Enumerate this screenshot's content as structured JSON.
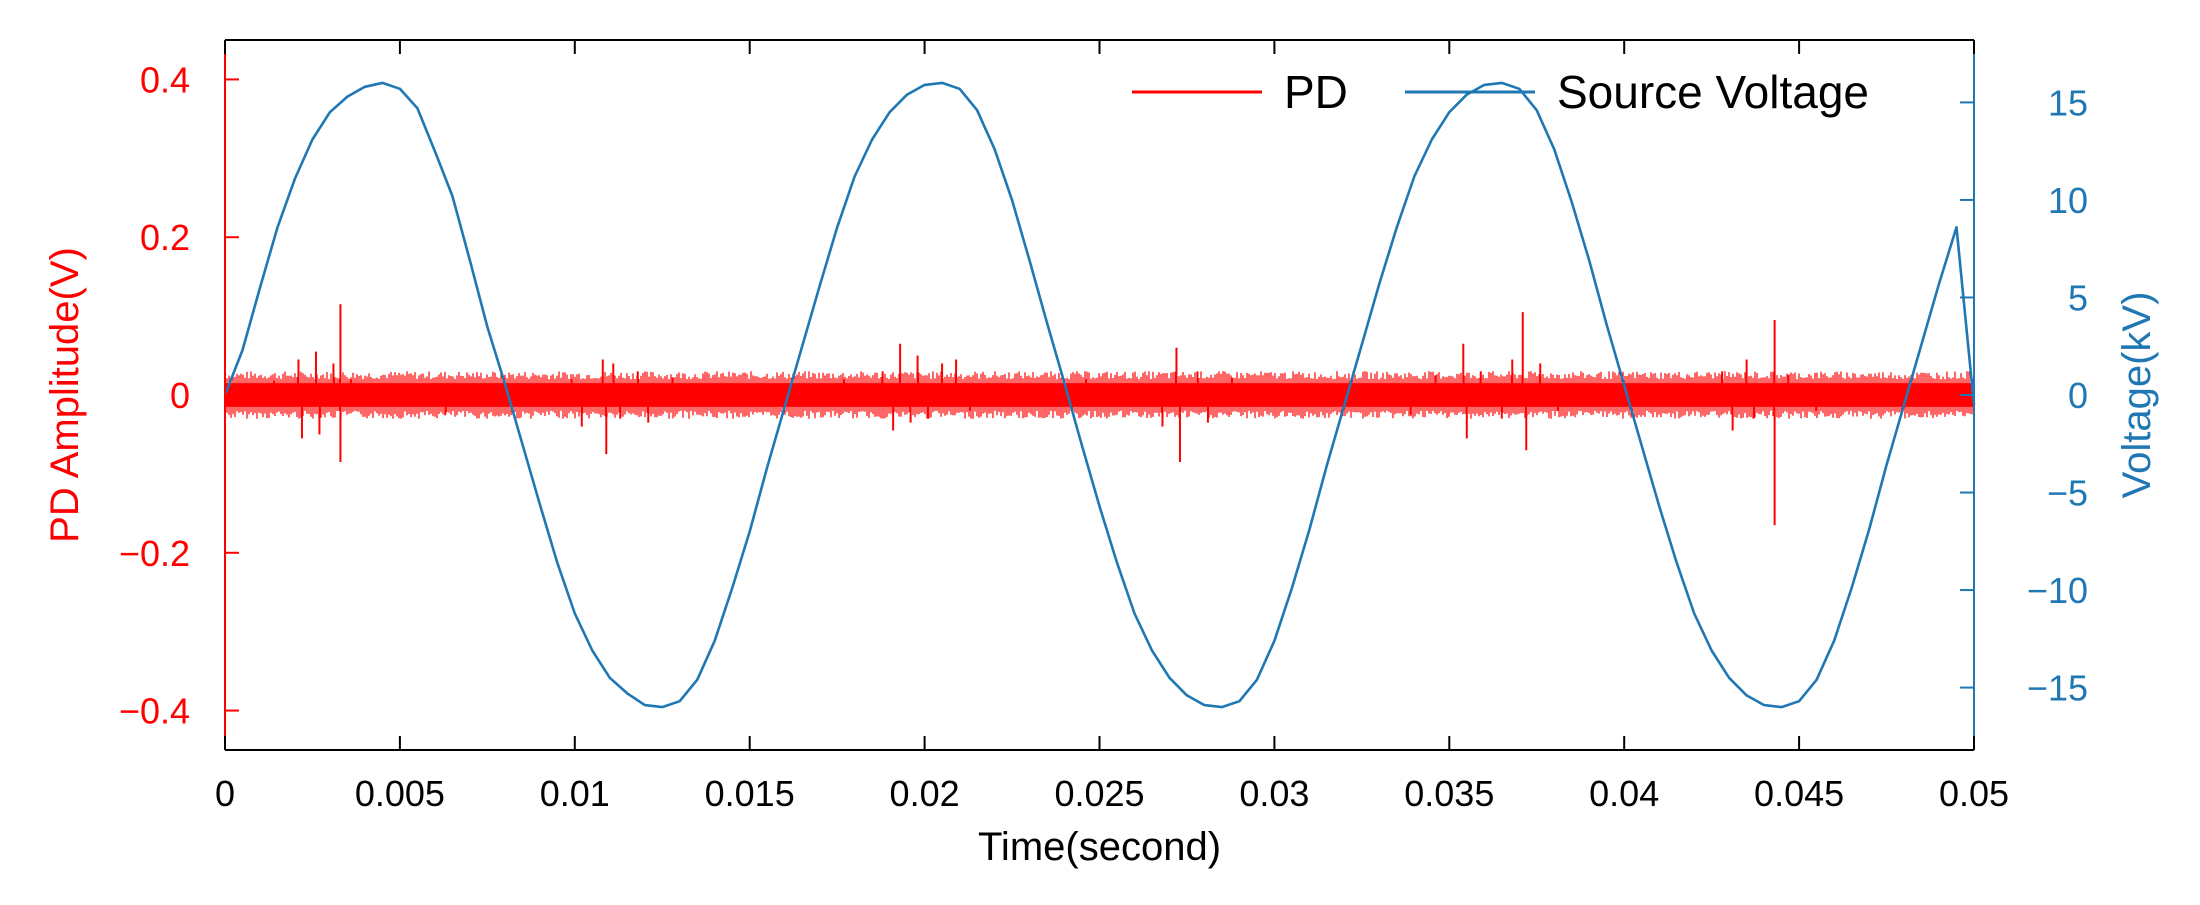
{
  "chart_data": {
    "type": "line",
    "title": "",
    "xlabel": "Time(second)",
    "ylabel_left": "PD Amplitude(V)",
    "ylabel_right": "Voltage(kV)",
    "xlim": [
      0,
      0.05
    ],
    "ylim_left": [
      -0.45,
      0.45
    ],
    "ylim_right": [
      -18.2,
      18.2
    ],
    "x_ticks": [
      0,
      0.005,
      0.01,
      0.015,
      0.02,
      0.025,
      0.03,
      0.035,
      0.04,
      0.045,
      0.05
    ],
    "x_tick_labels": [
      "0",
      "0.005",
      "0.01",
      "0.015",
      "0.02",
      "0.025",
      "0.03",
      "0.035",
      "0.04",
      "0.045",
      "0.05"
    ],
    "y_left_ticks": [
      -0.4,
      -0.2,
      0,
      0.2,
      0.4
    ],
    "y_left_tick_labels": [
      "-0.4",
      "-0.2",
      "0",
      "0.2",
      "0.4"
    ],
    "y_right_ticks": [
      -15,
      -10,
      -5,
      0,
      5,
      10,
      15
    ],
    "y_right_tick_labels": [
      "-15",
      "-10",
      "-5",
      "0",
      "5",
      "10",
      "15"
    ],
    "legend": {
      "placement": "top-right",
      "entries": [
        "PD",
        "Source Voltage"
      ]
    },
    "colors": {
      "pd": "#ff0000",
      "voltage": "#1f77b4",
      "axis": "#000000",
      "left_axis": "#ff0000",
      "right_axis": "#1f77b4"
    },
    "series": [
      {
        "name": "PD",
        "axis": "left",
        "noise_band": [
          -0.015,
          0.015
        ],
        "pulses": [
          {
            "t": 0.0014,
            "v": 0.018
          },
          {
            "t": 0.0021,
            "v": 0.045
          },
          {
            "t": 0.0022,
            "v": -0.055
          },
          {
            "t": 0.0026,
            "v": 0.055
          },
          {
            "t": 0.0027,
            "v": -0.05
          },
          {
            "t": 0.0031,
            "v": 0.04
          },
          {
            "t": 0.0033,
            "v": 0.115
          },
          {
            "t": 0.0033,
            "v": -0.085
          },
          {
            "t": 0.0036,
            "v": 0.02
          },
          {
            "t": 0.0052,
            "v": 0.015
          },
          {
            "t": 0.0063,
            "v": -0.025
          },
          {
            "t": 0.0099,
            "v": 0.02
          },
          {
            "t": 0.0102,
            "v": -0.04
          },
          {
            "t": 0.0108,
            "v": 0.045
          },
          {
            "t": 0.0109,
            "v": -0.075
          },
          {
            "t": 0.0111,
            "v": 0.04
          },
          {
            "t": 0.0113,
            "v": -0.03
          },
          {
            "t": 0.0118,
            "v": 0.03
          },
          {
            "t": 0.0121,
            "v": -0.035
          },
          {
            "t": 0.0128,
            "v": 0.022
          },
          {
            "t": 0.0177,
            "v": 0.02
          },
          {
            "t": 0.0188,
            "v": 0.03
          },
          {
            "t": 0.0191,
            "v": -0.045
          },
          {
            "t": 0.0193,
            "v": 0.065
          },
          {
            "t": 0.0196,
            "v": -0.035
          },
          {
            "t": 0.0198,
            "v": 0.05
          },
          {
            "t": 0.0201,
            "v": -0.03
          },
          {
            "t": 0.0205,
            "v": 0.04
          },
          {
            "t": 0.0209,
            "v": 0.045
          },
          {
            "t": 0.0213,
            "v": -0.02
          },
          {
            "t": 0.0246,
            "v": 0.02
          },
          {
            "t": 0.0268,
            "v": -0.04
          },
          {
            "t": 0.0272,
            "v": 0.06
          },
          {
            "t": 0.0273,
            "v": -0.085
          },
          {
            "t": 0.0278,
            "v": 0.03
          },
          {
            "t": 0.0281,
            "v": -0.035
          },
          {
            "t": 0.0288,
            "v": 0.022
          },
          {
            "t": 0.0339,
            "v": -0.025
          },
          {
            "t": 0.0346,
            "v": 0.025
          },
          {
            "t": 0.0354,
            "v": 0.065
          },
          {
            "t": 0.0355,
            "v": -0.055
          },
          {
            "t": 0.0359,
            "v": 0.03
          },
          {
            "t": 0.0365,
            "v": -0.03
          },
          {
            "t": 0.0368,
            "v": 0.045
          },
          {
            "t": 0.0371,
            "v": 0.105
          },
          {
            "t": 0.0372,
            "v": -0.07
          },
          {
            "t": 0.0376,
            "v": 0.04
          },
          {
            "t": 0.0381,
            "v": -0.02
          },
          {
            "t": 0.0428,
            "v": 0.03
          },
          {
            "t": 0.0431,
            "v": -0.045
          },
          {
            "t": 0.0435,
            "v": 0.045
          },
          {
            "t": 0.0437,
            "v": -0.03
          },
          {
            "t": 0.0443,
            "v": 0.095
          },
          {
            "t": 0.0443,
            "v": -0.165
          },
          {
            "t": 0.0447,
            "v": 0.025
          },
          {
            "t": 0.0455,
            "v": -0.02
          }
        ]
      },
      {
        "name": "Source Voltage",
        "axis": "right",
        "t": [
          0,
          0.0005,
          0.001,
          0.0015,
          0.002,
          0.0025,
          0.003,
          0.0035,
          0.004,
          0.0045,
          0.005,
          0.0055,
          0.006,
          0.0065,
          0.007,
          0.0075,
          0.008,
          0.0085,
          0.009,
          0.0095,
          0.01,
          0.0105,
          0.011,
          0.0115,
          0.012,
          0.0125,
          0.013,
          0.0135,
          0.014,
          0.0145,
          0.015,
          0.0155,
          0.016,
          0.0165,
          0.017,
          0.0175,
          0.018,
          0.0185,
          0.019,
          0.0195,
          0.02,
          0.0205,
          0.021,
          0.0215,
          0.022,
          0.0225,
          0.023,
          0.0235,
          0.024,
          0.0245,
          0.025,
          0.0255,
          0.026,
          0.0265,
          0.027,
          0.0275,
          0.028,
          0.0285,
          0.029,
          0.0295,
          0.03,
          0.0305,
          0.031,
          0.0315,
          0.032,
          0.0325,
          0.033,
          0.0335,
          0.034,
          0.0345,
          0.035,
          0.0355,
          0.036,
          0.0365,
          0.037,
          0.0375,
          0.038,
          0.0385,
          0.039,
          0.0395,
          0.04,
          0.0405,
          0.041,
          0.0415,
          0.042,
          0.0425,
          0.043,
          0.0435,
          0.044,
          0.0445,
          0.045,
          0.0455,
          0.046,
          0.0465,
          0.047,
          0.0475,
          0.048,
          0.0485,
          0.049,
          0.0495,
          0.05
        ],
        "values": [
          0.0,
          2.3,
          5.5,
          8.6,
          11.1,
          13.1,
          14.5,
          15.3,
          15.8,
          16.0,
          15.7,
          14.7,
          12.5,
          10.2,
          6.9,
          3.5,
          0.6,
          -2.5,
          -5.6,
          -8.6,
          -11.2,
          -13.1,
          -14.5,
          -15.3,
          -15.9,
          -16.0,
          -15.7,
          -14.6,
          -12.6,
          -9.9,
          -7.0,
          -3.7,
          -0.6,
          2.5,
          5.6,
          8.6,
          11.2,
          13.1,
          14.5,
          15.4,
          15.9,
          16.0,
          15.7,
          14.6,
          12.6,
          10.0,
          6.9,
          3.7,
          0.6,
          -2.6,
          -5.7,
          -8.6,
          -11.2,
          -13.1,
          -14.5,
          -15.4,
          -15.9,
          -16.0,
          -15.7,
          -14.6,
          -12.6,
          -9.9,
          -6.9,
          -3.6,
          -0.5,
          2.6,
          5.7,
          8.6,
          11.2,
          13.1,
          14.5,
          15.4,
          15.9,
          16.0,
          15.7,
          14.6,
          12.6,
          9.9,
          6.9,
          3.6,
          0.5,
          -2.6,
          -5.7,
          -8.6,
          -11.2,
          -13.1,
          -14.5,
          -15.4,
          -15.9,
          -16.0,
          -15.7,
          -14.6,
          -12.6,
          -9.9,
          -6.9,
          -3.6,
          -0.5,
          2.6,
          5.7,
          8.6,
          -0.5
        ]
      }
    ]
  }
}
